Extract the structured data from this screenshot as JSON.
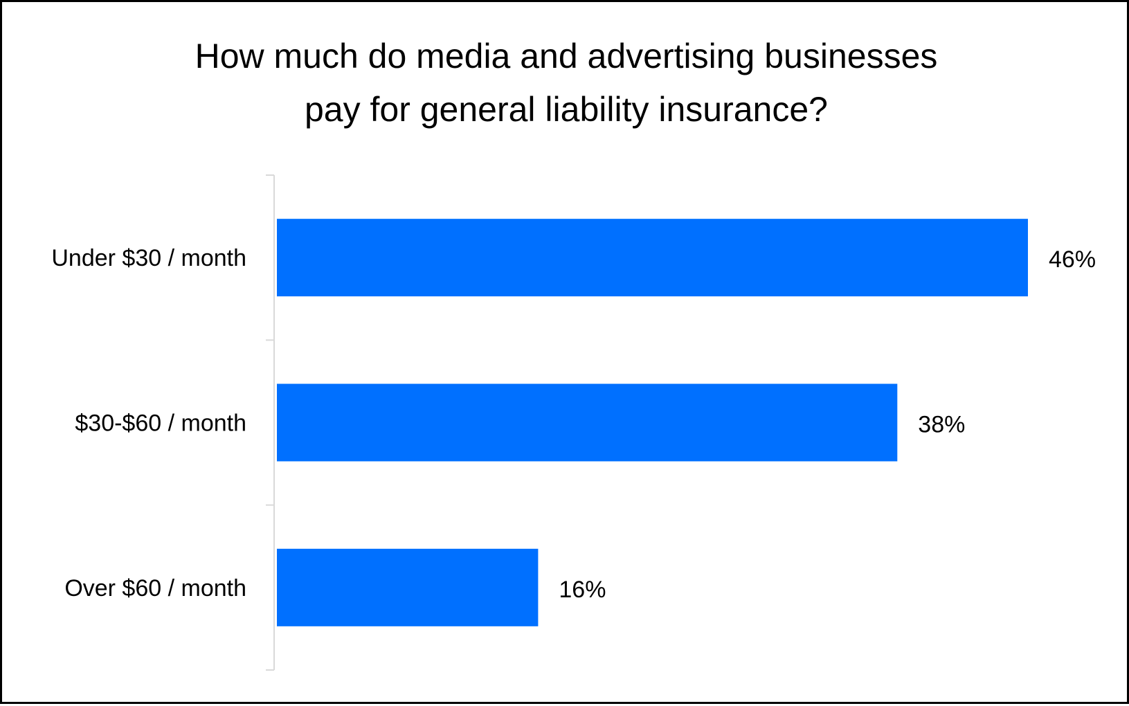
{
  "chart_data": {
    "type": "bar",
    "orientation": "horizontal",
    "title_lines": [
      "How much do media and advertising businesses",
      "pay for general liability insurance?"
    ],
    "categories": [
      "Under $30 / month",
      "$30-$60 / month",
      "Over $60 / month"
    ],
    "values": [
      46,
      38,
      16
    ],
    "value_labels": [
      "46%",
      "38%",
      "16%"
    ],
    "xlim": [
      0,
      46
    ],
    "xlabel": "",
    "ylabel": "",
    "grid": false,
    "legend": "none",
    "bar_color": "#0070FF",
    "axis_color": "#D9D9D9"
  }
}
